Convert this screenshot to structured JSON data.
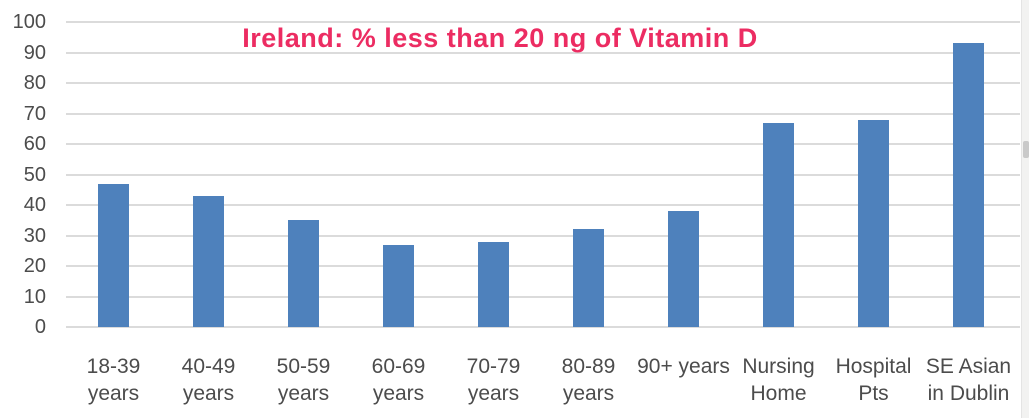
{
  "chart_data": {
    "type": "bar",
    "title": "Ireland: % less than 20 ng of Vitamin D",
    "categories": [
      "18-39 years",
      "40-49 years",
      "50-59 years",
      "60-69 years",
      "70-79 years",
      "80-89 years",
      "90+ years",
      "Nursing Home",
      "Hospital Pts",
      "SE Asian in Dublin"
    ],
    "category_label_lines": [
      [
        "18-39",
        "years"
      ],
      [
        "40-49",
        "years"
      ],
      [
        "50-59",
        "years"
      ],
      [
        "60-69",
        "years"
      ],
      [
        "70-79",
        "years"
      ],
      [
        "80-89",
        "years"
      ],
      [
        "90+ years"
      ],
      [
        "Nursing",
        "Home"
      ],
      [
        "Hospital",
        "Pts"
      ],
      [
        "SE Asian",
        "in Dublin"
      ]
    ],
    "values": [
      47,
      43,
      35,
      27,
      28,
      32,
      38,
      67,
      68,
      93
    ],
    "xlabel": "",
    "ylabel": "",
    "ylim": [
      0,
      100
    ],
    "yticks": [
      0,
      10,
      20,
      30,
      40,
      50,
      60,
      70,
      80,
      90,
      100
    ],
    "grid": "horizontal",
    "legend_position": "none",
    "colors": {
      "bar": "#4E81BC",
      "title": "#EC2C62",
      "gridline": "#DBDBDB",
      "axis_text": "#4C4C4C",
      "background": "#FFFFFF"
    }
  },
  "scrollbar": {
    "track_color": "#F2F2F1",
    "thumb_color": "#C9C9C9"
  }
}
